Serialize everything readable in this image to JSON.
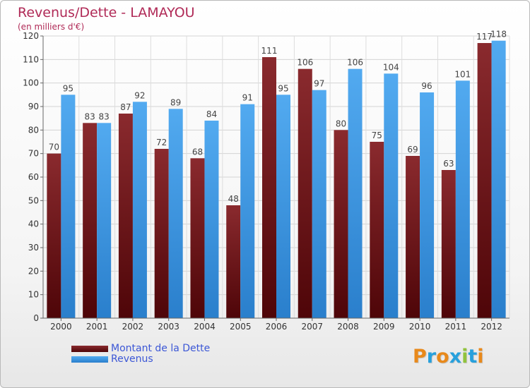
{
  "title": "Revenus/Dette - LAMAYOU",
  "subtitle": "(en milliers d'€)",
  "logo": {
    "text": "Proxiti",
    "letters": [
      "P",
      "r",
      "o",
      "x",
      "i",
      "t",
      "i"
    ],
    "colors": [
      "#e8891b",
      "#27a0dc",
      "#e8891b",
      "#27a0dc",
      "#91c33c",
      "#27a0dc",
      "#e8891b"
    ]
  },
  "legend": [
    {
      "label": "Montant de la Dette",
      "color": "#6b0f14"
    },
    {
      "label": "Revenus",
      "color": "#3d9be5"
    }
  ],
  "chart_data": {
    "type": "bar",
    "categories": [
      "2000",
      "2001",
      "2002",
      "2003",
      "2004",
      "2005",
      "2006",
      "2007",
      "2008",
      "2009",
      "2010",
      "2011",
      "2012"
    ],
    "series": [
      {
        "name": "Montant de la Dette",
        "color": "#6b0f14",
        "values": [
          70,
          83,
          87,
          72,
          68,
          48,
          111,
          106,
          80,
          75,
          69,
          63,
          117
        ]
      },
      {
        "name": "Revenus",
        "color": "#3d9be5",
        "values": [
          95,
          83,
          92,
          89,
          84,
          91,
          95,
          97,
          106,
          104,
          96,
          101,
          118
        ]
      }
    ],
    "ylim": [
      0,
      120
    ],
    "yticks": [
      0,
      10,
      20,
      30,
      40,
      50,
      60,
      70,
      80,
      90,
      100,
      110,
      120
    ],
    "grid": true,
    "legend_position": "bottom-left"
  }
}
